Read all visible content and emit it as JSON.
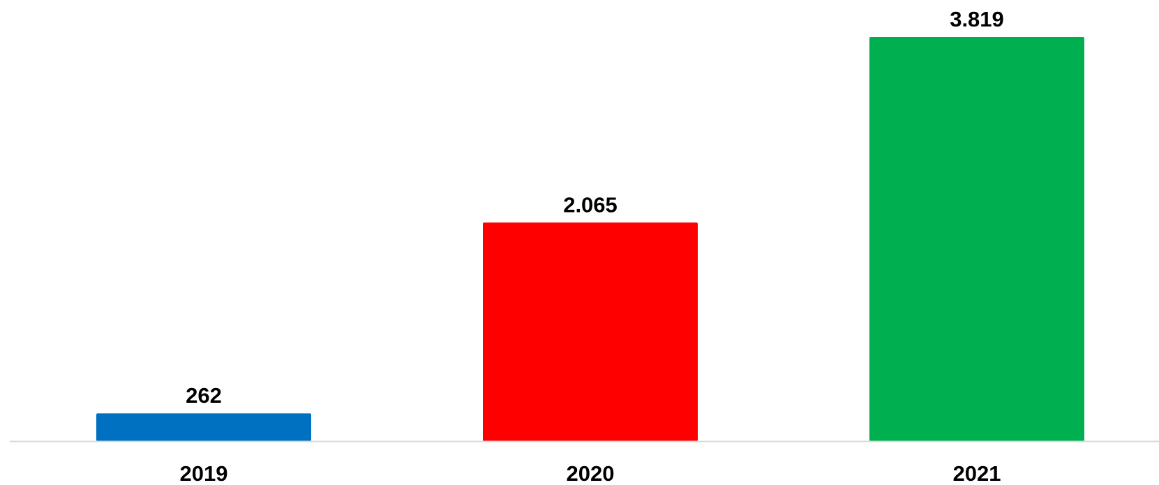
{
  "chart_data": {
    "type": "bar",
    "categories": [
      "2019",
      "2020",
      "2021"
    ],
    "values": [
      262,
      2065,
      3819
    ],
    "value_labels": [
      "262",
      "2.065",
      "3.819"
    ],
    "bar_colors": [
      "#0070C0",
      "#FF0000",
      "#00B050"
    ],
    "axis_color": "#D9D9D9",
    "grid": false,
    "legend": "none",
    "title": "",
    "xlabel": "",
    "ylabel": ""
  }
}
